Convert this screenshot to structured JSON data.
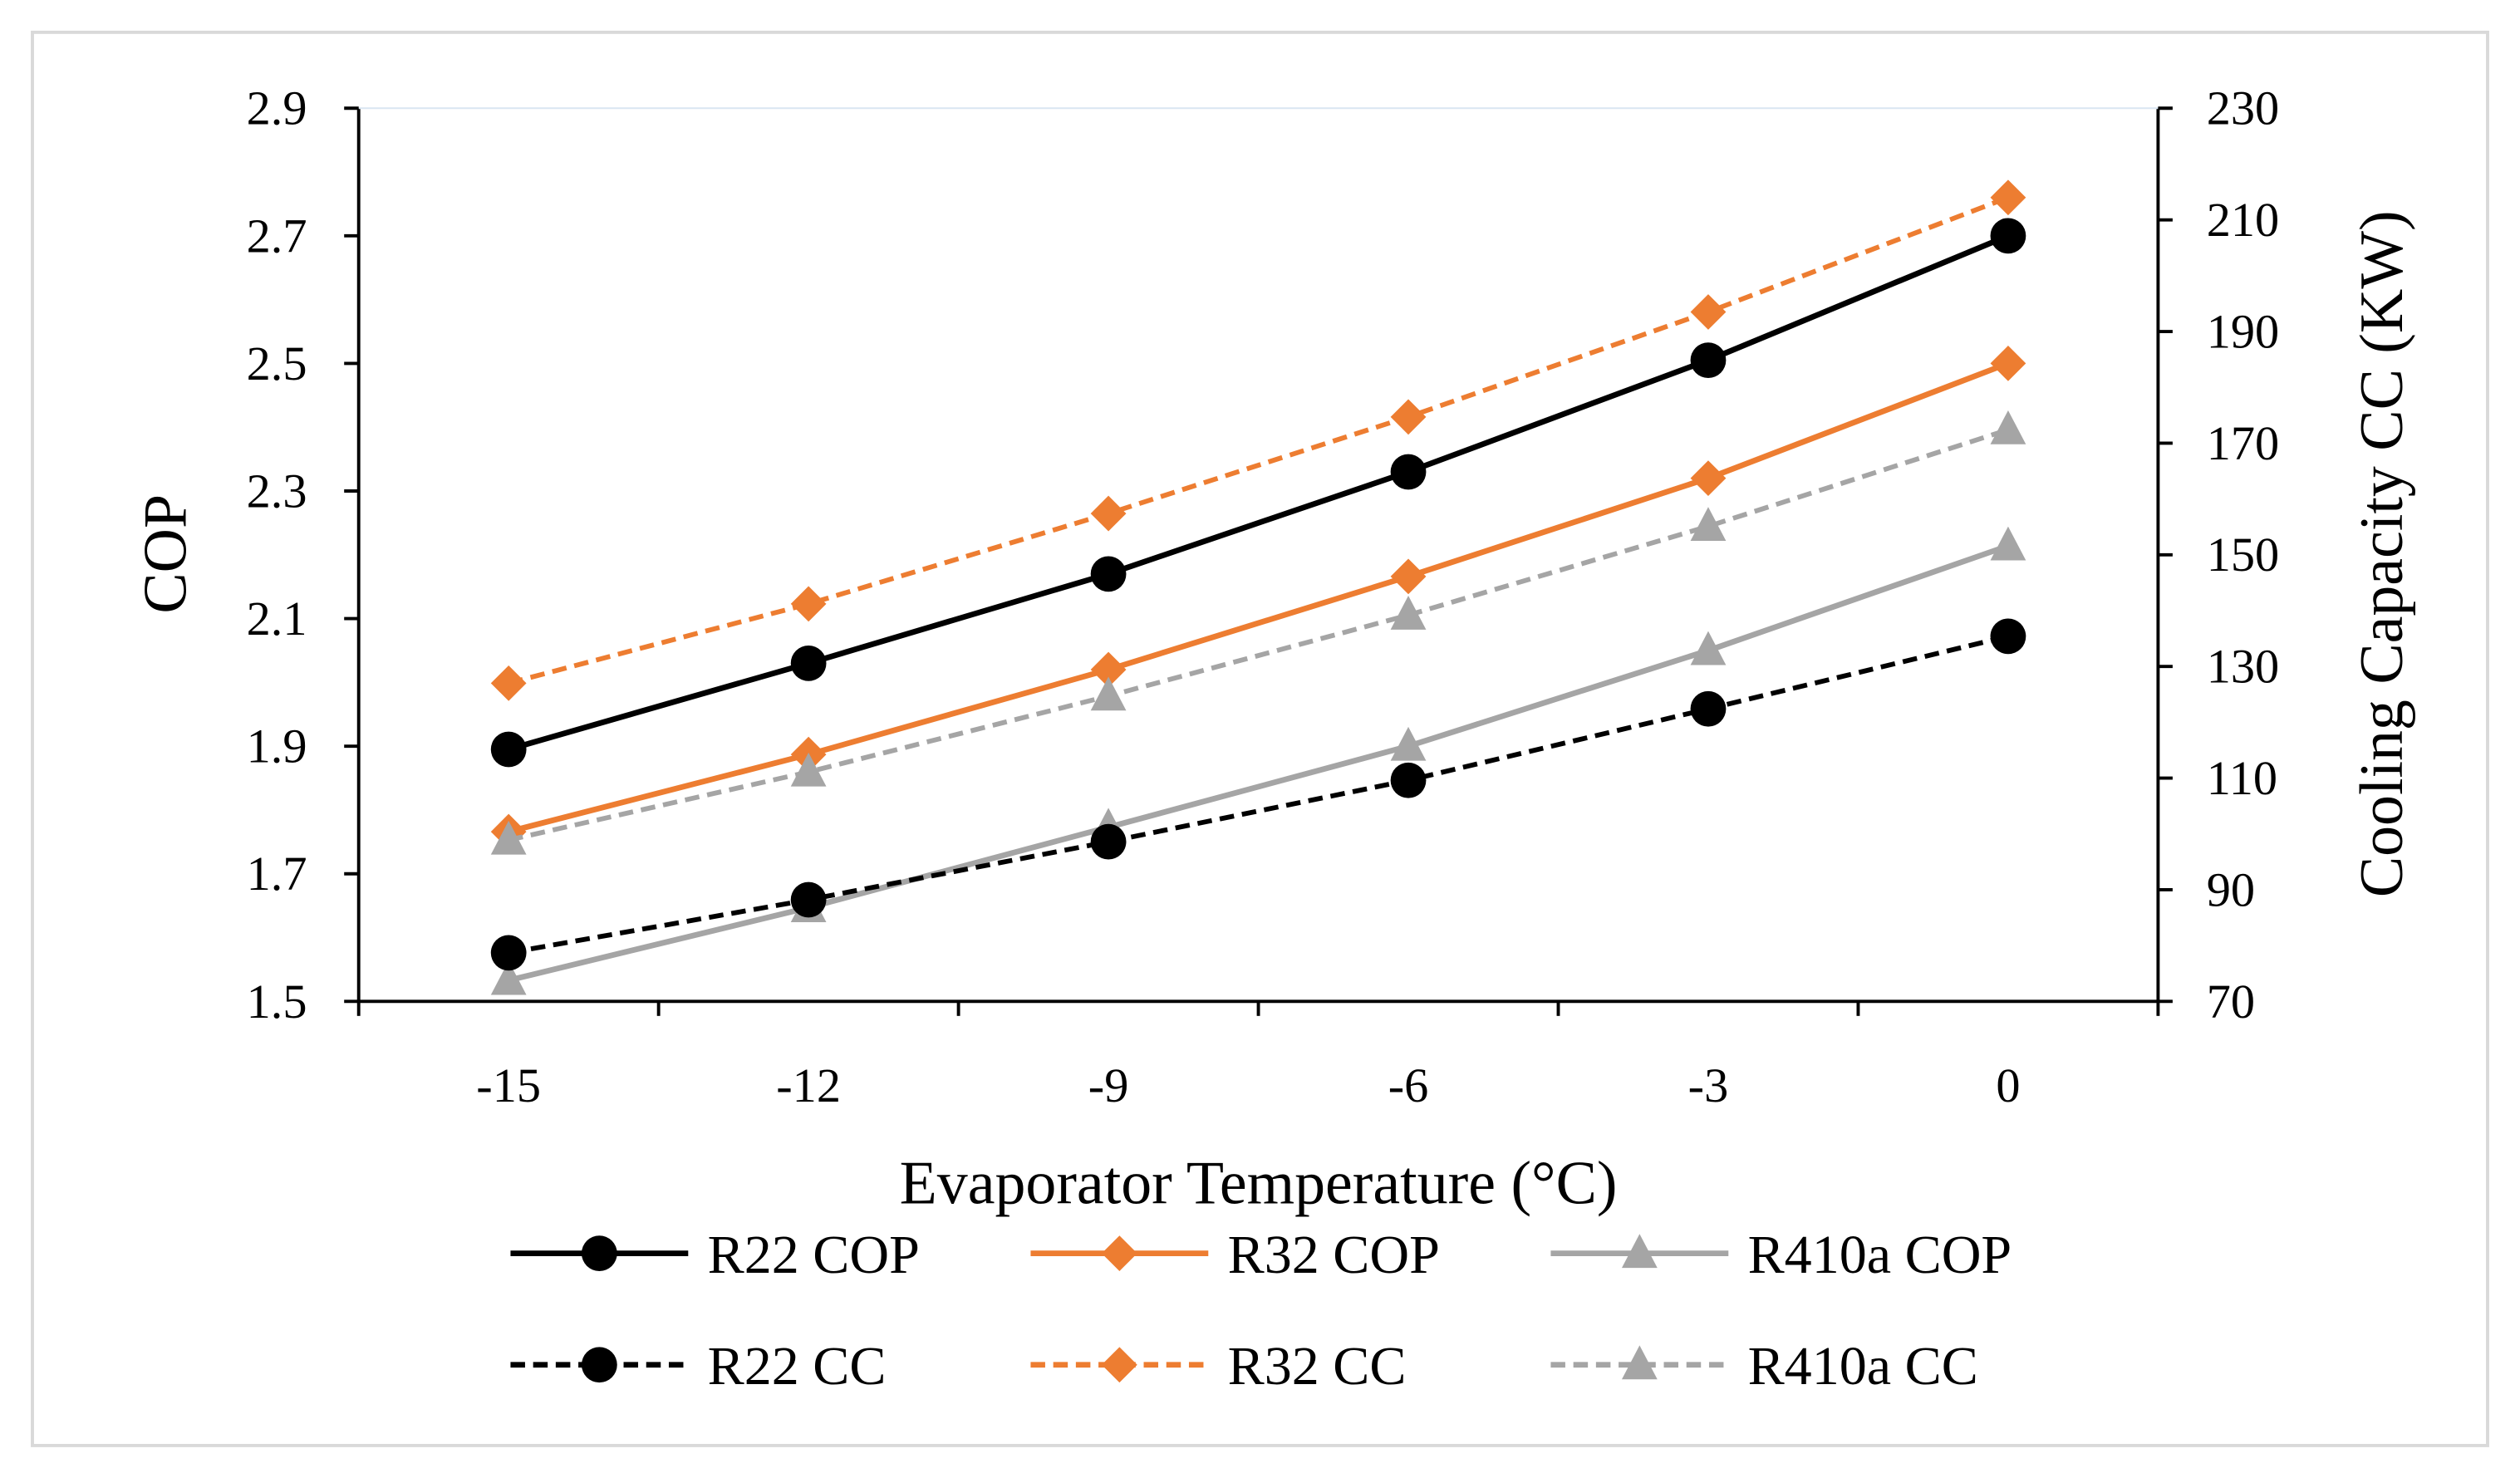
{
  "chart_data": {
    "type": "line",
    "title": "",
    "xlabel": "Evaporator Temperature (°C)",
    "ylabel": "COP",
    "y2label": "Cooling Capacity CC (KW)",
    "categories": [
      "-15",
      "-12",
      "-9",
      "-6",
      "-3",
      "0"
    ],
    "ylim": [
      1.5,
      2.9
    ],
    "y_ticks": [
      "1.5",
      "1.7",
      "1.9",
      "2.1",
      "2.3",
      "2.5",
      "2.7",
      "2.9"
    ],
    "y2lim": [
      70,
      230
    ],
    "y2_ticks": [
      "70",
      "90",
      "110",
      "130",
      "150",
      "170",
      "190",
      "210",
      "230"
    ],
    "grid": false,
    "legend_position": "bottom",
    "series": [
      {
        "name": "R22 COP",
        "axis": "left",
        "color": "#000000",
        "dash": false,
        "marker": "circle",
        "values": [
          1.895,
          2.03,
          2.17,
          2.33,
          2.505,
          2.7
        ]
      },
      {
        "name": "R32 COP",
        "axis": "left",
        "color": "#ED7D31",
        "dash": false,
        "marker": "diamond",
        "values": [
          1.766,
          1.887,
          2.02,
          2.166,
          2.32,
          2.5
        ]
      },
      {
        "name": "R410a COP",
        "axis": "left",
        "color": "#A5A5A5",
        "dash": false,
        "marker": "triangle",
        "values": [
          1.533,
          1.647,
          1.773,
          1.9,
          2.05,
          2.214
        ]
      },
      {
        "name": "R22 CC",
        "axis": "right",
        "color": "#000000",
        "dash": true,
        "marker": "circle",
        "values": [
          78.7,
          88.2,
          98.6,
          109.6,
          122.4,
          135.4
        ]
      },
      {
        "name": "R32 CC",
        "axis": "right",
        "color": "#ED7D31",
        "dash": true,
        "marker": "diamond",
        "values": [
          127,
          141.2,
          157.4,
          174.7,
          193.5,
          214
        ]
      },
      {
        "name": "R410a CC",
        "axis": "right",
        "color": "#A5A5A5",
        "dash": true,
        "marker": "triangle",
        "values": [
          98.9,
          111.1,
          124.7,
          139.2,
          155.1,
          172.4
        ]
      }
    ]
  }
}
